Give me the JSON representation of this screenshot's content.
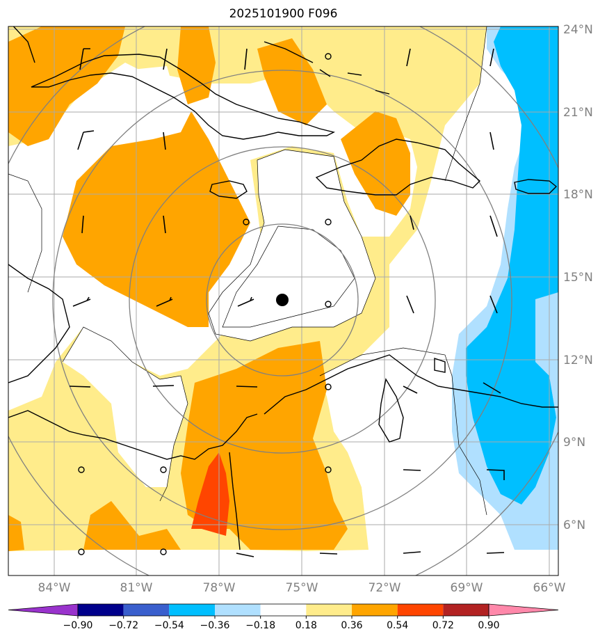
{
  "title": "2025101900 F096",
  "lat_ticks": [
    "24°N",
    "21°N",
    "18°N",
    "15°N",
    "12°N",
    "9°N",
    "6°N"
  ],
  "lon_ticks": [
    "84°W",
    "81°W",
    "78°W",
    "75°W",
    "72°W",
    "69°W",
    "66°W"
  ],
  "colorbar": {
    "labels": [
      "−0.90",
      "−0.72",
      "−0.54",
      "−0.36",
      "−0.18",
      "0.18",
      "0.36",
      "0.54",
      "0.72",
      "0.90"
    ],
    "colors": [
      "#9933cc",
      "#00008b",
      "#3a5fcd",
      "#00bfff",
      "#b0e0ff",
      "#ffffff",
      "#ffec8b",
      "#ffa500",
      "#ff4500",
      "#b22222",
      "#ff88aa"
    ]
  },
  "palette": {
    "light_yellow": "#ffec8b",
    "orange": "#ffa500",
    "red_orange": "#ff4500",
    "light_blue": "#b0e0ff",
    "cyan": "#00bfff"
  },
  "storm_center_marker": "black-dot-icon"
}
